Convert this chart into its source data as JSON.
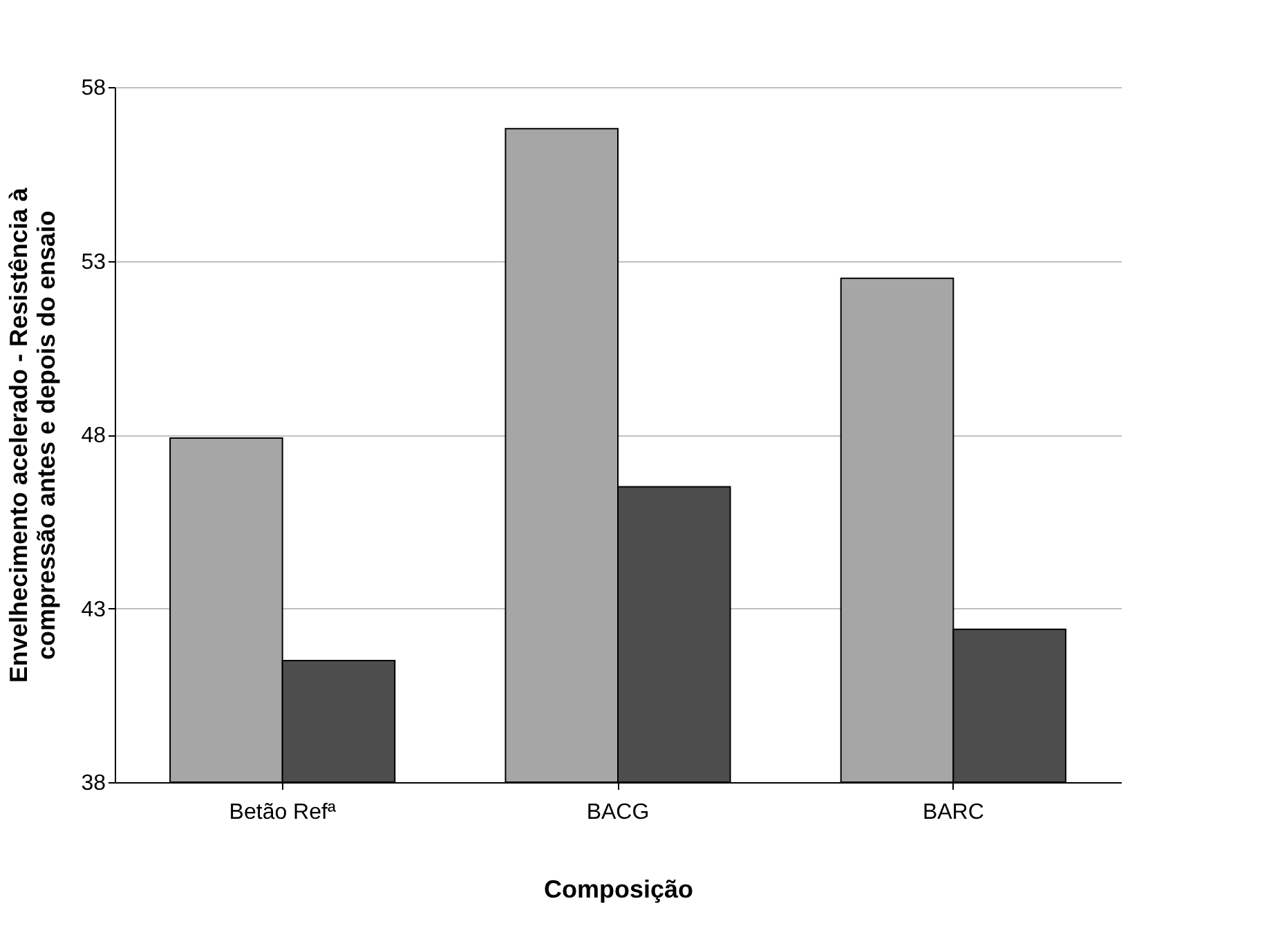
{
  "chart_data": {
    "type": "bar",
    "xlabel": "Composição",
    "ylabel": "Envelhecimento acelerado - Resistência à\ncompressão antes e depois do ensaio",
    "categories": [
      "Betão Refª",
      "BACG",
      "BARC"
    ],
    "series": [
      {
        "color": "#a6a6a6",
        "values": [
          47.9,
          56.8,
          52.5
        ]
      },
      {
        "color": "#4d4d4d",
        "values": [
          41.5,
          46.5,
          42.4
        ]
      }
    ],
    "ylim": [
      38,
      58
    ],
    "yticks": [
      38,
      43,
      48,
      53,
      58
    ],
    "grid": "y",
    "legend": false
  }
}
